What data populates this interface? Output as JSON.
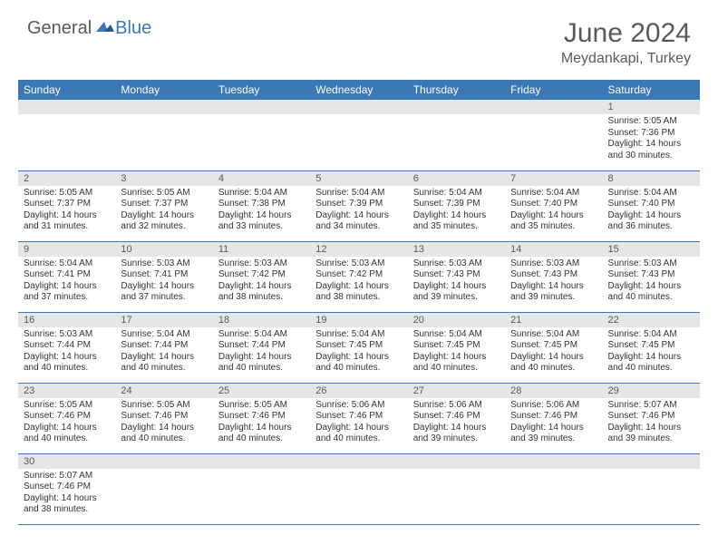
{
  "header": {
    "logo_general": "General",
    "logo_blue": "Blue",
    "month_year": "June 2024",
    "location": "Meydankapi, Turkey"
  },
  "colors": {
    "header_bg": "#3b78b5",
    "header_text": "#ffffff",
    "daynum_bg": "#e6e6e6",
    "border": "#3b78b5",
    "text": "#333333",
    "title": "#595959"
  },
  "day_headers": [
    "Sunday",
    "Monday",
    "Tuesday",
    "Wednesday",
    "Thursday",
    "Friday",
    "Saturday"
  ],
  "weeks": [
    [
      {
        "num": "",
        "lines": []
      },
      {
        "num": "",
        "lines": []
      },
      {
        "num": "",
        "lines": []
      },
      {
        "num": "",
        "lines": []
      },
      {
        "num": "",
        "lines": []
      },
      {
        "num": "",
        "lines": []
      },
      {
        "num": "1",
        "lines": [
          "Sunrise: 5:05 AM",
          "Sunset: 7:36 PM",
          "Daylight: 14 hours and 30 minutes."
        ]
      }
    ],
    [
      {
        "num": "2",
        "lines": [
          "Sunrise: 5:05 AM",
          "Sunset: 7:37 PM",
          "Daylight: 14 hours and 31 minutes."
        ]
      },
      {
        "num": "3",
        "lines": [
          "Sunrise: 5:05 AM",
          "Sunset: 7:37 PM",
          "Daylight: 14 hours and 32 minutes."
        ]
      },
      {
        "num": "4",
        "lines": [
          "Sunrise: 5:04 AM",
          "Sunset: 7:38 PM",
          "Daylight: 14 hours and 33 minutes."
        ]
      },
      {
        "num": "5",
        "lines": [
          "Sunrise: 5:04 AM",
          "Sunset: 7:39 PM",
          "Daylight: 14 hours and 34 minutes."
        ]
      },
      {
        "num": "6",
        "lines": [
          "Sunrise: 5:04 AM",
          "Sunset: 7:39 PM",
          "Daylight: 14 hours and 35 minutes."
        ]
      },
      {
        "num": "7",
        "lines": [
          "Sunrise: 5:04 AM",
          "Sunset: 7:40 PM",
          "Daylight: 14 hours and 35 minutes."
        ]
      },
      {
        "num": "8",
        "lines": [
          "Sunrise: 5:04 AM",
          "Sunset: 7:40 PM",
          "Daylight: 14 hours and 36 minutes."
        ]
      }
    ],
    [
      {
        "num": "9",
        "lines": [
          "Sunrise: 5:04 AM",
          "Sunset: 7:41 PM",
          "Daylight: 14 hours and 37 minutes."
        ]
      },
      {
        "num": "10",
        "lines": [
          "Sunrise: 5:03 AM",
          "Sunset: 7:41 PM",
          "Daylight: 14 hours and 37 minutes."
        ]
      },
      {
        "num": "11",
        "lines": [
          "Sunrise: 5:03 AM",
          "Sunset: 7:42 PM",
          "Daylight: 14 hours and 38 minutes."
        ]
      },
      {
        "num": "12",
        "lines": [
          "Sunrise: 5:03 AM",
          "Sunset: 7:42 PM",
          "Daylight: 14 hours and 38 minutes."
        ]
      },
      {
        "num": "13",
        "lines": [
          "Sunrise: 5:03 AM",
          "Sunset: 7:43 PM",
          "Daylight: 14 hours and 39 minutes."
        ]
      },
      {
        "num": "14",
        "lines": [
          "Sunrise: 5:03 AM",
          "Sunset: 7:43 PM",
          "Daylight: 14 hours and 39 minutes."
        ]
      },
      {
        "num": "15",
        "lines": [
          "Sunrise: 5:03 AM",
          "Sunset: 7:43 PM",
          "Daylight: 14 hours and 40 minutes."
        ]
      }
    ],
    [
      {
        "num": "16",
        "lines": [
          "Sunrise: 5:03 AM",
          "Sunset: 7:44 PM",
          "Daylight: 14 hours and 40 minutes."
        ]
      },
      {
        "num": "17",
        "lines": [
          "Sunrise: 5:04 AM",
          "Sunset: 7:44 PM",
          "Daylight: 14 hours and 40 minutes."
        ]
      },
      {
        "num": "18",
        "lines": [
          "Sunrise: 5:04 AM",
          "Sunset: 7:44 PM",
          "Daylight: 14 hours and 40 minutes."
        ]
      },
      {
        "num": "19",
        "lines": [
          "Sunrise: 5:04 AM",
          "Sunset: 7:45 PM",
          "Daylight: 14 hours and 40 minutes."
        ]
      },
      {
        "num": "20",
        "lines": [
          "Sunrise: 5:04 AM",
          "Sunset: 7:45 PM",
          "Daylight: 14 hours and 40 minutes."
        ]
      },
      {
        "num": "21",
        "lines": [
          "Sunrise: 5:04 AM",
          "Sunset: 7:45 PM",
          "Daylight: 14 hours and 40 minutes."
        ]
      },
      {
        "num": "22",
        "lines": [
          "Sunrise: 5:04 AM",
          "Sunset: 7:45 PM",
          "Daylight: 14 hours and 40 minutes."
        ]
      }
    ],
    [
      {
        "num": "23",
        "lines": [
          "Sunrise: 5:05 AM",
          "Sunset: 7:46 PM",
          "Daylight: 14 hours and 40 minutes."
        ]
      },
      {
        "num": "24",
        "lines": [
          "Sunrise: 5:05 AM",
          "Sunset: 7:46 PM",
          "Daylight: 14 hours and 40 minutes."
        ]
      },
      {
        "num": "25",
        "lines": [
          "Sunrise: 5:05 AM",
          "Sunset: 7:46 PM",
          "Daylight: 14 hours and 40 minutes."
        ]
      },
      {
        "num": "26",
        "lines": [
          "Sunrise: 5:06 AM",
          "Sunset: 7:46 PM",
          "Daylight: 14 hours and 40 minutes."
        ]
      },
      {
        "num": "27",
        "lines": [
          "Sunrise: 5:06 AM",
          "Sunset: 7:46 PM",
          "Daylight: 14 hours and 39 minutes."
        ]
      },
      {
        "num": "28",
        "lines": [
          "Sunrise: 5:06 AM",
          "Sunset: 7:46 PM",
          "Daylight: 14 hours and 39 minutes."
        ]
      },
      {
        "num": "29",
        "lines": [
          "Sunrise: 5:07 AM",
          "Sunset: 7:46 PM",
          "Daylight: 14 hours and 39 minutes."
        ]
      }
    ],
    [
      {
        "num": "30",
        "lines": [
          "Sunrise: 5:07 AM",
          "Sunset: 7:46 PM",
          "Daylight: 14 hours and 38 minutes."
        ]
      },
      {
        "num": "",
        "lines": []
      },
      {
        "num": "",
        "lines": []
      },
      {
        "num": "",
        "lines": []
      },
      {
        "num": "",
        "lines": []
      },
      {
        "num": "",
        "lines": []
      },
      {
        "num": "",
        "lines": []
      }
    ]
  ]
}
